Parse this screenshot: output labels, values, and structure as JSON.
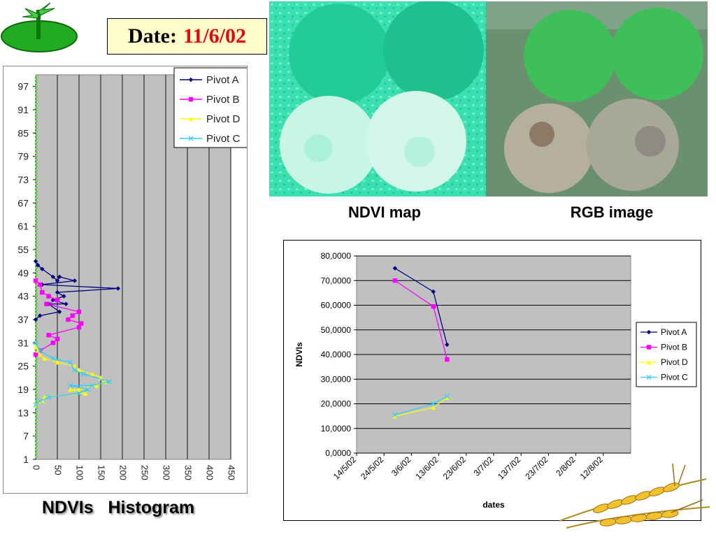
{
  "header": {
    "date_label": "Date:",
    "date_value": "11/6/02"
  },
  "images": {
    "ndvi_caption": "NDVI map",
    "rgb_caption": "RGB image"
  },
  "histogram_caption": "NDVIs   Histogram",
  "colors": {
    "pivot_a": "#000080",
    "pivot_b": "#ff00ff",
    "pivot_d": "#ffff00",
    "pivot_c": "#33ccff",
    "plot_bg": "#c0c0c0",
    "date_value": "#e8000b",
    "date_box_bg": "#ffffcc"
  },
  "chart_data": [
    {
      "type": "line",
      "orientation": "horizontal",
      "xlim": [
        0,
        450
      ],
      "x_ticks": [
        "0",
        "50",
        "100",
        "150",
        "200",
        "250",
        "300",
        "350",
        "400",
        "450"
      ],
      "ylim": [
        1,
        100
      ],
      "y_ticks": [
        "1",
        "7",
        "13",
        "19",
        "25",
        "31",
        "37",
        "43",
        "49",
        "55",
        "61",
        "67",
        "73",
        "79",
        "85",
        "91",
        "97"
      ],
      "legend": [
        "Pivot A",
        "Pivot B",
        "Pivot D",
        "Pivot C"
      ],
      "legend_position": "top-right",
      "series": [
        {
          "name": "Pivot A",
          "points": [
            [
              0,
              52
            ],
            [
              5,
              51
            ],
            [
              15,
              50
            ],
            [
              40,
              48
            ],
            [
              50,
              47
            ],
            [
              55,
              48
            ],
            [
              90,
              47
            ],
            [
              15,
              46
            ],
            [
              190,
              45
            ],
            [
              50,
              44
            ],
            [
              65,
              43
            ],
            [
              40,
              42
            ],
            [
              70,
              41
            ],
            [
              30,
              41
            ],
            [
              55,
              39
            ],
            [
              10,
              38
            ],
            [
              0,
              37
            ]
          ]
        },
        {
          "name": "Pivot B",
          "points": [
            [
              0,
              47
            ],
            [
              10,
              46
            ],
            [
              15,
              44
            ],
            [
              30,
              43
            ],
            [
              50,
              42
            ],
            [
              25,
              41
            ],
            [
              100,
              39
            ],
            [
              85,
              38
            ],
            [
              75,
              37
            ],
            [
              105,
              36
            ],
            [
              100,
              35
            ],
            [
              30,
              33
            ],
            [
              50,
              32
            ],
            [
              40,
              31
            ],
            [
              10,
              29
            ],
            [
              0,
              28
            ]
          ]
        },
        {
          "name": "Pivot D",
          "points": [
            [
              0,
              30
            ],
            [
              5,
              29
            ],
            [
              10,
              28
            ],
            [
              20,
              27
            ],
            [
              50,
              26
            ],
            [
              90,
              25
            ],
            [
              100,
              24
            ],
            [
              130,
              23
            ],
            [
              150,
              22
            ],
            [
              160,
              21
            ],
            [
              140,
              20
            ],
            [
              100,
              19
            ],
            [
              80,
              19
            ],
            [
              115,
              18
            ],
            [
              20,
              17
            ],
            [
              15,
              16
            ],
            [
              0,
              15
            ]
          ]
        },
        {
          "name": "Pivot C",
          "points": [
            [
              0,
              31
            ],
            [
              10,
              29
            ],
            [
              40,
              27
            ],
            [
              80,
              26
            ],
            [
              90,
              24
            ],
            [
              110,
              23
            ],
            [
              170,
              21
            ],
            [
              130,
              20
            ],
            [
              80,
              20
            ],
            [
              120,
              19
            ],
            [
              100,
              18
            ],
            [
              30,
              17
            ],
            [
              10,
              16
            ],
            [
              0,
              15
            ]
          ]
        }
      ]
    },
    {
      "type": "line",
      "xlabel": "dates",
      "ylabel": "NDVIs",
      "x_ticks": [
        "14/5/02",
        "24/5/02",
        "3/6/02",
        "13/6/02",
        "23/6/02",
        "3/7/02",
        "13/7/02",
        "23/7/02",
        "2/8/02",
        "12/8/02"
      ],
      "xlim": [
        "14/5/02",
        "22/8/02"
      ],
      "y_ticks": [
        "0,0000",
        "10,0000",
        "20,0000",
        "30,0000",
        "40,0000",
        "50,0000",
        "60,0000",
        "70,0000",
        "80,0000"
      ],
      "ylim": [
        0,
        80
      ],
      "legend": [
        "Pivot A",
        "Pivot B",
        "Pivot D",
        "Pivot C"
      ],
      "legend_position": "right",
      "series": [
        {
          "name": "Pivot A",
          "x": [
            "28/5/02",
            "11/6/02",
            "16/6/02"
          ],
          "y": [
            75,
            65.5,
            44
          ]
        },
        {
          "name": "Pivot B",
          "x": [
            "28/5/02",
            "11/6/02",
            "16/6/02"
          ],
          "y": [
            70,
            59.5,
            38
          ]
        },
        {
          "name": "Pivot D",
          "x": [
            "28/5/02",
            "11/6/02",
            "16/6/02"
          ],
          "y": [
            15,
            18.5,
            22.5
          ]
        },
        {
          "name": "Pivot C",
          "x": [
            "28/5/02",
            "11/6/02",
            "16/6/02"
          ],
          "y": [
            15.5,
            20,
            23
          ]
        }
      ]
    }
  ]
}
